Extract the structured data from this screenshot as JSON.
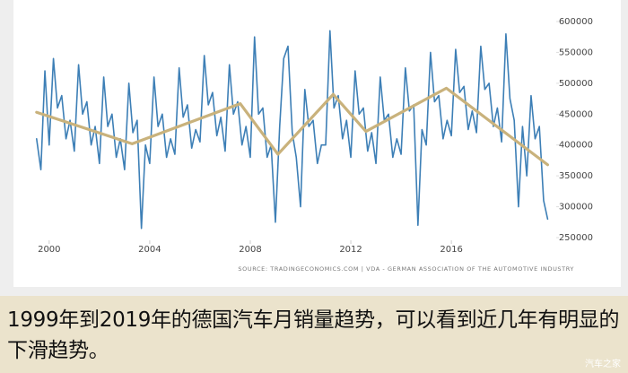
{
  "chart_data": {
    "type": "line",
    "source": "SOURCE: TRADINGECONOMICS.COM | VDA - GERMAN ASSOCIATION OF THE AUTOMOTIVE INDUSTRY",
    "xlim": [
      1999.4,
      2020.1
    ],
    "xticks": [
      2000,
      2004,
      2008,
      2012,
      2016
    ],
    "ylim": [
      250000,
      600000
    ],
    "yticks": [
      250000,
      300000,
      350000,
      400000,
      450000,
      500000,
      550000,
      600000
    ],
    "series": [
      {
        "color": "#3d7fb6",
        "width": 1.6,
        "x": [
          1999.5,
          1999.67,
          1999.83,
          2000.0,
          2000.17,
          2000.33,
          2000.5,
          2000.67,
          2000.83,
          2001.0,
          2001.17,
          2001.33,
          2001.5,
          2001.67,
          2001.83,
          2002.0,
          2002.17,
          2002.33,
          2002.5,
          2002.67,
          2002.83,
          2003.0,
          2003.17,
          2003.33,
          2003.5,
          2003.67,
          2003.83,
          2004.0,
          2004.17,
          2004.33,
          2004.5,
          2004.67,
          2004.83,
          2005.0,
          2005.17,
          2005.33,
          2005.5,
          2005.67,
          2005.83,
          2006.0,
          2006.17,
          2006.33,
          2006.5,
          2006.67,
          2006.83,
          2007.0,
          2007.17,
          2007.33,
          2007.5,
          2007.67,
          2007.83,
          2008.0,
          2008.17,
          2008.33,
          2008.5,
          2008.67,
          2008.83,
          2009.0,
          2009.17,
          2009.33,
          2009.5,
          2009.67,
          2009.83,
          2010.0,
          2010.17,
          2010.33,
          2010.5,
          2010.67,
          2010.83,
          2011.0,
          2011.17,
          2011.33,
          2011.5,
          2011.67,
          2011.83,
          2012.0,
          2012.17,
          2012.33,
          2012.5,
          2012.67,
          2012.83,
          2013.0,
          2013.17,
          2013.33,
          2013.5,
          2013.67,
          2013.83,
          2014.0,
          2014.17,
          2014.33,
          2014.5,
          2014.67,
          2014.83,
          2015.0,
          2015.17,
          2015.33,
          2015.5,
          2015.67,
          2015.83,
          2016.0,
          2016.17,
          2016.33,
          2016.5,
          2016.67,
          2016.83,
          2017.0,
          2017.17,
          2017.33,
          2017.5,
          2017.67,
          2017.83,
          2018.0,
          2018.17,
          2018.33,
          2018.5,
          2018.67,
          2018.83,
          2019.0,
          2019.17,
          2019.33,
          2019.5,
          2019.67,
          2019.83
        ],
        "values": [
          410000,
          360000,
          520000,
          400000,
          540000,
          460000,
          480000,
          410000,
          440000,
          390000,
          530000,
          450000,
          470000,
          400000,
          430000,
          370000,
          510000,
          430000,
          450000,
          380000,
          410000,
          360000,
          500000,
          420000,
          440000,
          265000,
          400000,
          370000,
          510000,
          430000,
          450000,
          380000,
          410000,
          385000,
          525000,
          445000,
          465000,
          395000,
          425000,
          405000,
          545000,
          465000,
          485000,
          415000,
          445000,
          390000,
          530000,
          450000,
          470000,
          400000,
          430000,
          380000,
          575000,
          450000,
          460000,
          380000,
          400000,
          275000,
          430000,
          540000,
          560000,
          420000,
          380000,
          300000,
          490000,
          430000,
          440000,
          370000,
          400000,
          400000,
          585000,
          460000,
          480000,
          410000,
          440000,
          380000,
          520000,
          450000,
          460000,
          390000,
          420000,
          370000,
          510000,
          440000,
          450000,
          380000,
          410000,
          385000,
          525000,
          455000,
          465000,
          270000,
          425000,
          400000,
          550000,
          470000,
          480000,
          410000,
          440000,
          415000,
          555000,
          485000,
          495000,
          425000,
          455000,
          420000,
          560000,
          490000,
          500000,
          430000,
          460000,
          405000,
          580000,
          475000,
          440000,
          300000,
          430000,
          350000,
          480000,
          410000,
          430000,
          310000,
          280000
        ]
      },
      {
        "color": "#c9b27c",
        "width": 3.2,
        "x": [
          1999.5,
          2003.3,
          2007.6,
          2009.1,
          2011.3,
          2012.6,
          2015.8,
          2019.83
        ],
        "values": [
          453000,
          402000,
          467000,
          385000,
          482000,
          422000,
          492000,
          368000
        ]
      }
    ]
  },
  "caption": "1999年到2019年的德国汽车月销量趋势，可以看到近几年有明显的下滑趋势。",
  "watermark": "汽车之家"
}
